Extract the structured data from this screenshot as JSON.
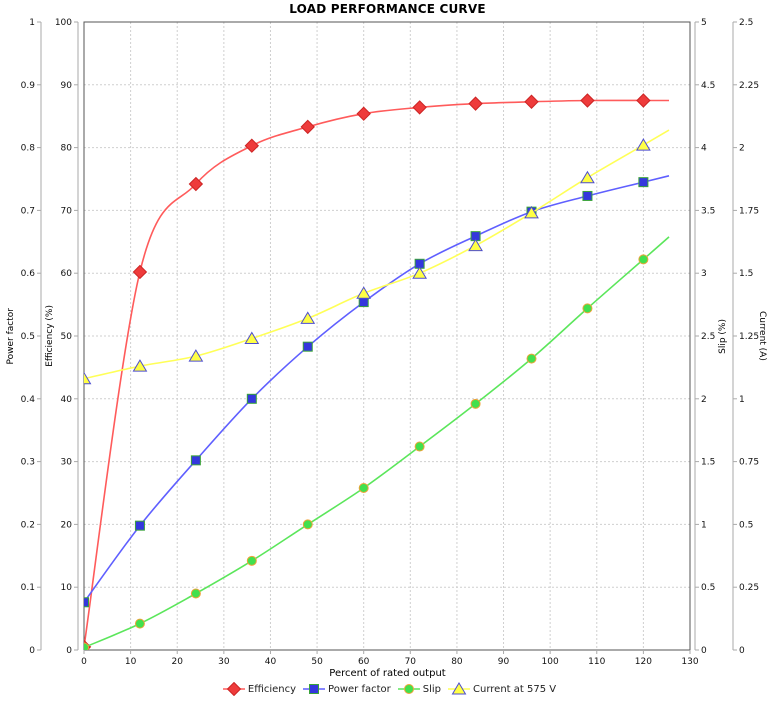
{
  "title": "LOAD PERFORMANCE CURVE",
  "axes": {
    "x": {
      "title": "Percent of rated output",
      "min": 0,
      "max": 130,
      "step": 10
    },
    "power_factor": {
      "title": "Power factor",
      "min": 0,
      "max": 1,
      "step": 0.1
    },
    "efficiency": {
      "title": "Efficiency (%)",
      "min": 0,
      "max": 100,
      "step": 10
    },
    "slip": {
      "title": "Slip (%)",
      "min": 0,
      "max": 5,
      "step": 0.5
    },
    "current": {
      "title": "Current (A)",
      "min": 0,
      "max": 2.5,
      "step": 0.25
    }
  },
  "chart_data": {
    "type": "scatter",
    "title": "LOAD PERFORMANCE CURVE",
    "xlabel": "Percent of rated output",
    "xlim": [
      0,
      130
    ],
    "grid": true,
    "legend_position": "bottom",
    "line_extend_to": 125.5,
    "x": [
      0,
      12,
      24,
      36,
      48,
      60,
      72,
      84,
      96,
      108,
      120
    ],
    "series": [
      {
        "name": "Efficiency",
        "axis": "efficiency",
        "marker": "diamond",
        "marker_fill": "#ee3b3b",
        "marker_stroke": "#cc2424",
        "line_color": "#ff5b5b",
        "values": [
          0.5,
          60.2,
          74.2,
          80.3,
          83.3,
          85.4,
          86.4,
          87.0,
          87.3,
          87.5,
          87.5
        ]
      },
      {
        "name": "Power factor",
        "axis": "power_factor",
        "marker": "square",
        "marker_fill": "#3437dd",
        "marker_stroke": "#3aa33a",
        "line_color": "#5f5fff",
        "values": [
          0.076,
          0.198,
          0.302,
          0.4,
          0.483,
          0.554,
          0.615,
          0.659,
          0.698,
          0.723,
          0.745
        ]
      },
      {
        "name": "Slip",
        "axis": "slip",
        "marker": "circle",
        "marker_fill": "#41e04d",
        "marker_stroke": "#f0a33a",
        "line_color": "#5be65b",
        "values": [
          0.02,
          0.21,
          0.45,
          0.71,
          1.0,
          1.29,
          1.62,
          1.96,
          2.32,
          2.72,
          3.11
        ]
      },
      {
        "name": "Current at 575 V",
        "axis": "current",
        "marker": "triangle",
        "marker_fill": "#ffff45",
        "marker_stroke": "#4d4dd0",
        "line_color": "#ffff57",
        "values": [
          1.08,
          1.13,
          1.17,
          1.24,
          1.32,
          1.42,
          1.5,
          1.61,
          1.74,
          1.88,
          2.01
        ]
      }
    ]
  },
  "colors": {
    "grid": "#cfcfcf",
    "plot_border": "#555555",
    "axis_line": "#aaaaaa",
    "tick_label": "#111111"
  }
}
